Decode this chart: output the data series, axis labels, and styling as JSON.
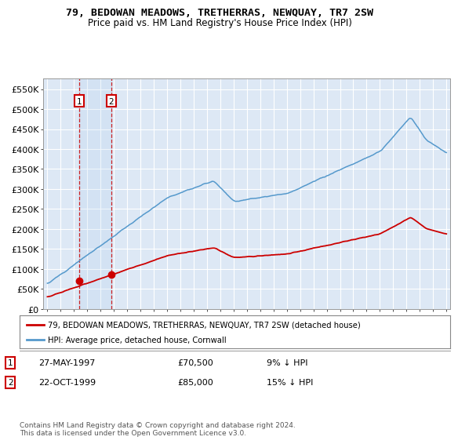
{
  "title": "79, BEDOWAN MEADOWS, TRETHERRAS, NEWQUAY, TR7 2SW",
  "subtitle": "Price paid vs. HM Land Registry's House Price Index (HPI)",
  "background_color": "#ffffff",
  "plot_bg_color": "#dde8f5",
  "grid_color": "#ffffff",
  "ylim": [
    0,
    577000
  ],
  "yticks": [
    0,
    50000,
    100000,
    150000,
    200000,
    250000,
    300000,
    350000,
    400000,
    450000,
    500000,
    550000
  ],
  "ytick_labels": [
    "£0",
    "£50K",
    "£100K",
    "£150K",
    "£200K",
    "£250K",
    "£300K",
    "£350K",
    "£400K",
    "£450K",
    "£500K",
    "£550K"
  ],
  "transaction1": {
    "date": "27-MAY-1997",
    "price": 70500,
    "year": 1997.38,
    "pct": "9%",
    "label": "1"
  },
  "transaction2": {
    "date": "22-OCT-1999",
    "price": 85000,
    "year": 1999.8,
    "pct": "15%",
    "label": "2"
  },
  "legend_line1": "79, BEDOWAN MEADOWS, TRETHERRAS, NEWQUAY, TR7 2SW (detached house)",
  "legend_line2": "HPI: Average price, detached house, Cornwall",
  "footer": "Contains HM Land Registry data © Crown copyright and database right 2024.\nThis data is licensed under the Open Government Licence v3.0.",
  "line_color_red": "#cc0000",
  "line_color_blue": "#5599cc",
  "marker_color": "#cc0000",
  "xlim_left": 1994.7,
  "xlim_right": 2025.3
}
